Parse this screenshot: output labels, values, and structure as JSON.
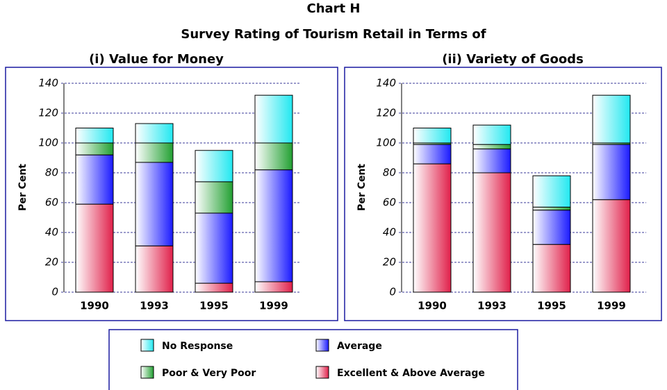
{
  "header": {
    "title": "Chart H",
    "subtitle": "Survey Rating of Tourism Retail in Terms of"
  },
  "chart_data": [
    {
      "type": "bar",
      "stacked": true,
      "title": "(i) Value for Money",
      "y_label": "Per Cent",
      "categories": [
        "1990",
        "1993",
        "1995",
        "1999"
      ],
      "series": [
        {
          "name": "Excellent & Above Average",
          "color": "#e0204a",
          "values": [
            59,
            31,
            6,
            7
          ]
        },
        {
          "name": "Average",
          "color": "#1a1aff",
          "values": [
            33,
            56,
            47,
            75
          ]
        },
        {
          "name": "Poor & Very Poor",
          "color": "#22a032",
          "values": [
            8,
            13,
            21,
            18
          ]
        },
        {
          "name": "No Response",
          "color": "#22e8f0",
          "values": [
            10,
            13,
            21,
            32
          ]
        }
      ],
      "ylim": [
        0,
        140
      ],
      "yticks": [
        0,
        20,
        40,
        60,
        80,
        100,
        120,
        140
      ],
      "grid": true
    },
    {
      "type": "bar",
      "stacked": true,
      "title": "(ii) Variety of Goods",
      "y_label": "Per Cent",
      "categories": [
        "1990",
        "1993",
        "1995",
        "1999"
      ],
      "series": [
        {
          "name": "Excellent & Above Average",
          "color": "#e0204a",
          "values": [
            86,
            80,
            32,
            62
          ]
        },
        {
          "name": "Average",
          "color": "#1a1aff",
          "values": [
            13,
            16,
            23,
            37
          ]
        },
        {
          "name": "Poor & Very Poor",
          "color": "#22a032",
          "values": [
            1,
            3,
            2,
            1
          ]
        },
        {
          "name": "No Response",
          "color": "#22e8f0",
          "values": [
            10,
            13,
            21,
            32
          ]
        }
      ],
      "ylim": [
        0,
        140
      ],
      "yticks": [
        0,
        20,
        40,
        60,
        80,
        100,
        120,
        140
      ],
      "grid": true
    }
  ]
}
